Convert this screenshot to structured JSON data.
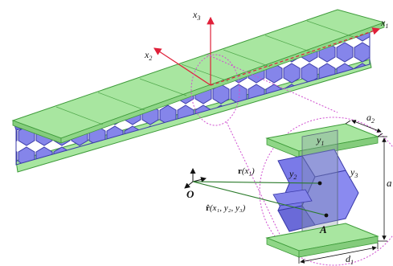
{
  "labels": {
    "x1": "x",
    "x1_sub": "1",
    "x2": "x",
    "x2_sub": "2",
    "x3": "x",
    "x3_sub": "3",
    "a2": "a",
    "a2_sub": "2",
    "a": "a",
    "d1": "d",
    "d1_sub": "1",
    "y1": "y",
    "y1_sub": "1",
    "y2": "y",
    "y2_sub": "2",
    "y3": "y",
    "y3_sub": "3",
    "origin": "O",
    "point_a": "A",
    "r_vec": "r",
    "r_args": "(x",
    "r_sub": "1",
    "r_close": ")",
    "rhat_vec": "r̂",
    "rhat_args": "(x₁, y₂, y₃)"
  },
  "colors": {
    "face_sheet": "#a8e6a0",
    "face_sheet_edge": "#3e9b3a",
    "core": "#7a7ae8",
    "core_dark": "#4a4ac0",
    "axis_red": "#e0203a",
    "zoom_magenta": "#d050d0",
    "vector_green": "#2a7a2a",
    "plane_gray": "#7a8a9a"
  }
}
